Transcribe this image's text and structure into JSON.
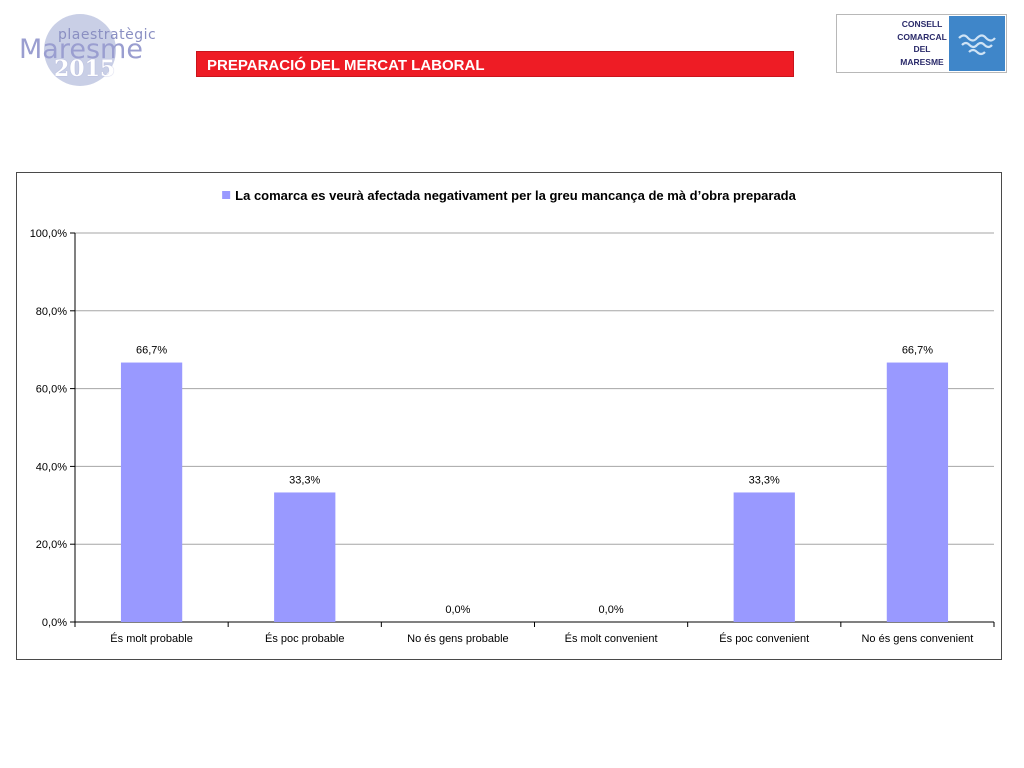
{
  "header": {
    "logo_top": "plaestratègic",
    "logo_main": "Maresme",
    "logo_year": "2015",
    "title": "PREPARACIÓ DEL MERCAT LABORAL",
    "consell_lines": [
      "CONSELL",
      "COMARCAL",
      "DEL",
      "MARESME"
    ],
    "consell_emblem_icon": "waves-emblem-icon"
  },
  "colors": {
    "title_bar": "#ee1c25",
    "bar": "#9999ff",
    "gridline": "#a6a6a6",
    "consell_emblem": "#3f86c9"
  },
  "chart_data": {
    "type": "bar",
    "title": "",
    "legend_position": "top",
    "categories": [
      "És molt probable",
      "És poc probable",
      "No és gens probable",
      "És molt convenient",
      "És poc convenient",
      "No és gens convenient"
    ],
    "series": [
      {
        "name": "La comarca es veurà afectada negativament per la greu mancança de mà d’obra preparada",
        "values": [
          66.7,
          33.3,
          0.0,
          0.0,
          33.3,
          66.7
        ],
        "labels": [
          "66,7%",
          "33,3%",
          "0,0%",
          "0,0%",
          "33,3%",
          "66,7%"
        ]
      }
    ],
    "y_ticks": [
      "0,0%",
      "20,0%",
      "40,0%",
      "60,0%",
      "80,0%",
      "100,0%"
    ],
    "ylim": [
      0,
      100
    ],
    "grid": true
  }
}
